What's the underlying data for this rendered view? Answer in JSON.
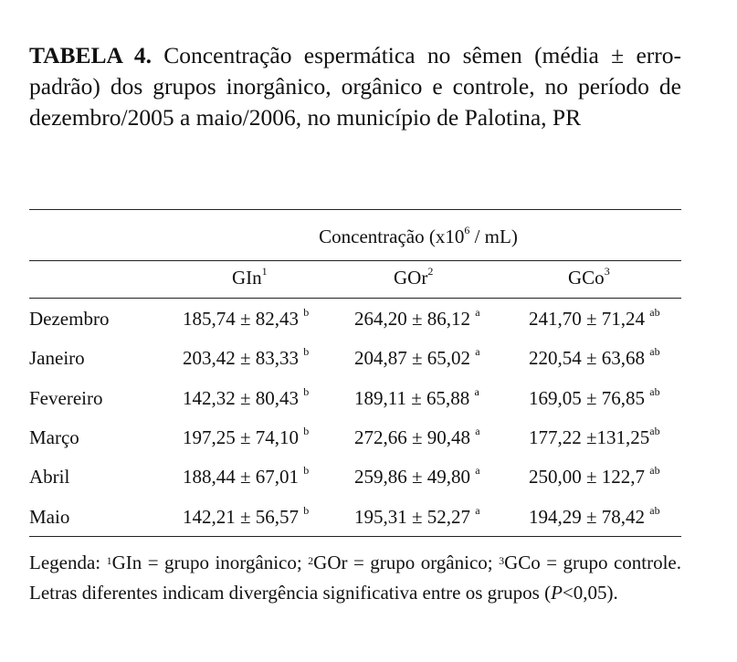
{
  "title": {
    "label": "TABELA 4.",
    "text": "Concentração espermática no sêmen (média ± erro-padrão) dos grupos inorgânico, orgânico e controle, no período de dezembro/2005 a maio/2006, no município de Palotina, PR"
  },
  "table": {
    "group_header": {
      "prefix": "Concentração (x10",
      "exp": "6",
      "suffix": " / mL)"
    },
    "columns": [
      {
        "label": "GIn",
        "note": "1"
      },
      {
        "label": "GOr",
        "note": "2"
      },
      {
        "label": "GCo",
        "note": "3"
      }
    ],
    "rows": [
      {
        "month": "Dezembro",
        "cells": [
          {
            "v": "185,74 ± 82,43 ",
            "s": "b"
          },
          {
            "v": "264,20 ± 86,12 ",
            "s": "a"
          },
          {
            "v": "241,70 ± 71,24 ",
            "s": "ab"
          }
        ]
      },
      {
        "month": "Janeiro",
        "cells": [
          {
            "v": "203,42 ± 83,33 ",
            "s": "b"
          },
          {
            "v": "204,87 ± 65,02 ",
            "s": "a"
          },
          {
            "v": "220,54 ± 63,68 ",
            "s": "ab"
          }
        ]
      },
      {
        "month": "Fevereiro",
        "cells": [
          {
            "v": "142,32 ± 80,43 ",
            "s": "b"
          },
          {
            "v": "189,11 ± 65,88 ",
            "s": "a"
          },
          {
            "v": "169,05 ± 76,85 ",
            "s": "ab"
          }
        ]
      },
      {
        "month": "Março",
        "cells": [
          {
            "v": "197,25 ± 74,10 ",
            "s": "b"
          },
          {
            "v": "272,66 ± 90,48 ",
            "s": "a"
          },
          {
            "v": "177,22 ±131,25",
            "s": "ab"
          }
        ]
      },
      {
        "month": "Abril",
        "cells": [
          {
            "v": "188,44 ± 67,01 ",
            "s": "b"
          },
          {
            "v": "259,86 ± 49,80 ",
            "s": "a"
          },
          {
            "v": "250,00 ± 122,7 ",
            "s": "ab"
          }
        ]
      },
      {
        "month": "Maio",
        "cells": [
          {
            "v": "142,21 ± 56,57 ",
            "s": "b"
          },
          {
            "v": "195,31 ± 52,27 ",
            "s": "a"
          },
          {
            "v": "194,29 ± 78,42 ",
            "s": "ab"
          }
        ]
      }
    ]
  },
  "legend": {
    "prefix": "Legenda: ",
    "n1": "1",
    "t1": "GIn = grupo inorgânico; ",
    "n2": "2",
    "t2": "GOr = grupo orgânico; ",
    "n3": "3",
    "t3": "GCo = grupo controle. Letras diferentes indicam divergência significativa entre os grupos (",
    "p": "P",
    "end": "<0,05)."
  }
}
